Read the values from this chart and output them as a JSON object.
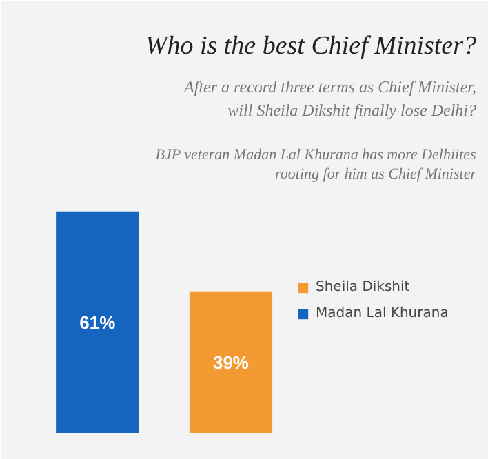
{
  "chart_data": {
    "type": "bar",
    "title": "Who is the best Chief Minister?",
    "subtitle": "After a record three terms as Chief Minister, will Sheila Dikshit finally lose Delhi?",
    "annotations": [
      "BJP veteran Madan Lal Khurana has more Delhiites rooting for him as Chief Minister"
    ],
    "categories": [
      null,
      null
    ],
    "stacked": true,
    "series": [
      {
        "name": "Sheila Dikshit",
        "color": "#f39a33",
        "values": [
          null,
          39
        ],
        "value_labels": [
          null,
          "39%"
        ]
      },
      {
        "name": "Madan Lal Khurana",
        "color": "#1565c0",
        "values": [
          61,
          null
        ],
        "value_labels": [
          "61%",
          null
        ]
      }
    ],
    "legend": "right",
    "grid": false
  }
}
